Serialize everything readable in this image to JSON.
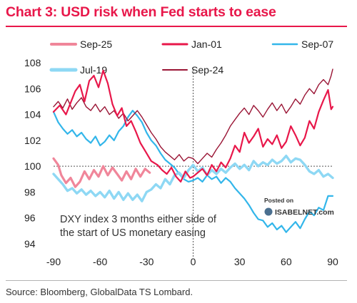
{
  "chart_data": {
    "type": "line",
    "title": "Chart 3: USD risk when Fed starts to ease",
    "source": "Source: Bloomberg, GlobalData TS Lombard.",
    "annotation": [
      "DXY index 3 months either side of",
      "the start of US monetary easing"
    ],
    "watermark": {
      "line1": "Posted on",
      "line2": "ISABELNET.com"
    },
    "xlim": [
      -90,
      90
    ],
    "ylim": [
      94,
      108
    ],
    "x_ticks": [
      -90,
      -60,
      -30,
      0,
      30,
      60,
      90
    ],
    "y_ticks": [
      94,
      96,
      98,
      100,
      102,
      104,
      106,
      108
    ],
    "reference_line": 100,
    "grid": false,
    "legend_position": "top",
    "series": [
      {
        "name": "Sep-25",
        "color": "#f0869a",
        "points": [
          [
            -90,
            100.6
          ],
          [
            -87,
            100.1
          ],
          [
            -85,
            99.3
          ],
          [
            -82,
            98.7
          ],
          [
            -79,
            99.1
          ],
          [
            -76,
            98.4
          ],
          [
            -73,
            98.8
          ],
          [
            -70,
            99.6
          ],
          [
            -67,
            99.0
          ],
          [
            -64,
            99.7
          ],
          [
            -61,
            99.2
          ],
          [
            -58,
            100.0
          ],
          [
            -55,
            99.3
          ],
          [
            -52,
            99.9
          ],
          [
            -49,
            99.4
          ],
          [
            -46,
            98.9
          ],
          [
            -43,
            99.6
          ],
          [
            -40,
            99.0
          ],
          [
            -37,
            99.8
          ],
          [
            -34,
            99.2
          ],
          [
            -31,
            99.8
          ],
          [
            -28,
            99.5
          ]
        ]
      },
      {
        "name": "Jan-01",
        "color": "#e8174a",
        "points": [
          [
            -90,
            104.2
          ],
          [
            -86,
            104.7
          ],
          [
            -82,
            104.0
          ],
          [
            -79,
            104.9
          ],
          [
            -76,
            105.8
          ],
          [
            -73,
            106.3
          ],
          [
            -70,
            105.0
          ],
          [
            -67,
            106.6
          ],
          [
            -64,
            107.0
          ],
          [
            -61,
            106.1
          ],
          [
            -58,
            107.4
          ],
          [
            -55,
            106.4
          ],
          [
            -52,
            104.8
          ],
          [
            -49,
            103.9
          ],
          [
            -46,
            104.5
          ],
          [
            -43,
            103.1
          ],
          [
            -40,
            103.5
          ],
          [
            -37,
            102.7
          ],
          [
            -34,
            101.8
          ],
          [
            -31,
            101.2
          ],
          [
            -27,
            100.4
          ],
          [
            -23,
            100.1
          ],
          [
            -20,
            99.7
          ],
          [
            -17,
            99.4
          ],
          [
            -14,
            99.9
          ],
          [
            -11,
            99.2
          ],
          [
            -8,
            98.8
          ],
          [
            -5,
            99.6
          ],
          [
            -2,
            99.1
          ],
          [
            0,
            99.2
          ],
          [
            3,
            99.5
          ],
          [
            6,
            99.8
          ],
          [
            9,
            99.3
          ],
          [
            12,
            100.1
          ],
          [
            15,
            99.6
          ],
          [
            18,
            100.3
          ],
          [
            21,
            99.9
          ],
          [
            24,
            100.6
          ],
          [
            27,
            101.6
          ],
          [
            30,
            101.1
          ],
          [
            33,
            102.6
          ],
          [
            36,
            101.8
          ],
          [
            39,
            102.3
          ],
          [
            42,
            102.9
          ],
          [
            45,
            101.5
          ],
          [
            48,
            102.1
          ],
          [
            51,
            101.7
          ],
          [
            54,
            102.4
          ],
          [
            57,
            101.4
          ],
          [
            60,
            101.9
          ],
          [
            63,
            103.1
          ],
          [
            66,
            102.4
          ],
          [
            69,
            101.6
          ],
          [
            72,
            102.2
          ],
          [
            75,
            103.5
          ],
          [
            78,
            102.9
          ],
          [
            81,
            104.2
          ],
          [
            84,
            105.1
          ],
          [
            87,
            105.9
          ],
          [
            89,
            104.4
          ],
          [
            90,
            104.6
          ]
        ]
      },
      {
        "name": "Sep-07",
        "color": "#33b6ea",
        "points": [
          [
            -90,
            104.2
          ],
          [
            -87,
            103.4
          ],
          [
            -84,
            102.9
          ],
          [
            -81,
            102.5
          ],
          [
            -78,
            102.8
          ],
          [
            -75,
            102.3
          ],
          [
            -72,
            102.6
          ],
          [
            -69,
            102.1
          ],
          [
            -66,
            101.8
          ],
          [
            -63,
            102.3
          ],
          [
            -60,
            101.6
          ],
          [
            -57,
            101.9
          ],
          [
            -54,
            102.4
          ],
          [
            -51,
            102.0
          ],
          [
            -48,
            102.7
          ],
          [
            -45,
            103.1
          ],
          [
            -42,
            103.8
          ],
          [
            -39,
            104.3
          ],
          [
            -36,
            103.9
          ],
          [
            -33,
            103.4
          ],
          [
            -30,
            102.6
          ],
          [
            -27,
            102.0
          ],
          [
            -24,
            101.6
          ],
          [
            -21,
            101.0
          ],
          [
            -18,
            100.5
          ],
          [
            -15,
            100.2
          ],
          [
            -12,
            99.9
          ],
          [
            -9,
            99.4
          ],
          [
            -6,
            99.0
          ],
          [
            -3,
            98.8
          ],
          [
            0,
            98.9
          ],
          [
            3,
            99.1
          ],
          [
            6,
            98.8
          ],
          [
            9,
            99.3
          ],
          [
            12,
            99.0
          ],
          [
            15,
            99.2
          ],
          [
            18,
            98.7
          ],
          [
            21,
            99.1
          ],
          [
            24,
            98.8
          ],
          [
            27,
            98.3
          ],
          [
            30,
            97.9
          ],
          [
            33,
            97.5
          ],
          [
            36,
            97.0
          ],
          [
            39,
            96.4
          ],
          [
            42,
            95.9
          ],
          [
            45,
            95.8
          ],
          [
            48,
            95.3
          ],
          [
            51,
            95.6
          ],
          [
            54,
            95.1
          ],
          [
            57,
            95.4
          ],
          [
            60,
            94.9
          ],
          [
            63,
            95.3
          ],
          [
            66,
            95.7
          ],
          [
            69,
            95.2
          ],
          [
            72,
            95.9
          ],
          [
            75,
            96.5
          ],
          [
            78,
            96.2
          ],
          [
            81,
            96.8
          ],
          [
            84,
            96.6
          ],
          [
            87,
            97.7
          ],
          [
            90,
            97.7
          ]
        ]
      },
      {
        "name": "Jul-19",
        "color": "#8ed8f4",
        "points": [
          [
            -90,
            99.4
          ],
          [
            -87,
            99.0
          ],
          [
            -84,
            98.6
          ],
          [
            -81,
            98.1
          ],
          [
            -78,
            98.3
          ],
          [
            -75,
            97.9
          ],
          [
            -72,
            98.2
          ],
          [
            -69,
            97.8
          ],
          [
            -66,
            98.1
          ],
          [
            -63,
            97.7
          ],
          [
            -60,
            98.0
          ],
          [
            -57,
            97.6
          ],
          [
            -54,
            98.1
          ],
          [
            -51,
            97.5
          ],
          [
            -48,
            98.0
          ],
          [
            -45,
            97.4
          ],
          [
            -42,
            97.9
          ],
          [
            -39,
            97.4
          ],
          [
            -36,
            97.8
          ],
          [
            -33,
            97.3
          ],
          [
            -30,
            98.0
          ],
          [
            -27,
            98.2
          ],
          [
            -24,
            98.6
          ],
          [
            -21,
            98.3
          ],
          [
            -18,
            99.0
          ],
          [
            -15,
            98.6
          ],
          [
            -12,
            99.3
          ],
          [
            -9,
            99.5
          ],
          [
            -6,
            99.1
          ],
          [
            -3,
            99.7
          ],
          [
            0,
            100.1
          ],
          [
            3,
            99.6
          ],
          [
            6,
            99.9
          ],
          [
            9,
            99.3
          ],
          [
            12,
            99.7
          ],
          [
            15,
            99.4
          ],
          [
            18,
            99.8
          ],
          [
            21,
            99.5
          ],
          [
            24,
            99.9
          ],
          [
            27,
            100.2
          ],
          [
            30,
            99.8
          ],
          [
            33,
            100.1
          ],
          [
            36,
            99.7
          ],
          [
            39,
            100.4
          ],
          [
            42,
            100.0
          ],
          [
            45,
            100.3
          ],
          [
            48,
            100.1
          ],
          [
            51,
            100.5
          ],
          [
            54,
            100.2
          ],
          [
            57,
            100.4
          ],
          [
            60,
            100.8
          ],
          [
            63,
            100.3
          ],
          [
            66,
            100.6
          ],
          [
            69,
            100.5
          ],
          [
            72,
            100.1
          ],
          [
            75,
            99.6
          ],
          [
            78,
            99.4
          ],
          [
            81,
            99.7
          ],
          [
            84,
            99.2
          ],
          [
            87,
            99.4
          ],
          [
            90,
            99.1
          ]
        ]
      },
      {
        "name": "Sep-24",
        "color": "#9a1535",
        "points": [
          [
            -90,
            104.6
          ],
          [
            -87,
            105.0
          ],
          [
            -84,
            104.5
          ],
          [
            -81,
            105.2
          ],
          [
            -78,
            104.4
          ],
          [
            -75,
            104.9
          ],
          [
            -72,
            105.3
          ],
          [
            -69,
            104.6
          ],
          [
            -66,
            104.3
          ],
          [
            -63,
            104.8
          ],
          [
            -60,
            104.2
          ],
          [
            -57,
            104.6
          ],
          [
            -54,
            104.0
          ],
          [
            -51,
            104.3
          ],
          [
            -48,
            103.7
          ],
          [
            -45,
            104.1
          ],
          [
            -42,
            103.5
          ],
          [
            -39,
            103.9
          ],
          [
            -36,
            104.3
          ],
          [
            -33,
            103.8
          ],
          [
            -30,
            103.2
          ],
          [
            -27,
            102.6
          ],
          [
            -24,
            102.1
          ],
          [
            -21,
            101.5
          ],
          [
            -18,
            101.1
          ],
          [
            -15,
            100.8
          ],
          [
            -12,
            100.5
          ],
          [
            -9,
            100.9
          ],
          [
            -6,
            100.4
          ],
          [
            -3,
            100.7
          ],
          [
            0,
            100.6
          ],
          [
            3,
            100.2
          ],
          [
            6,
            100.6
          ],
          [
            9,
            101.0
          ],
          [
            12,
            100.7
          ],
          [
            15,
            101.3
          ],
          [
            18,
            101.8
          ],
          [
            21,
            102.4
          ],
          [
            24,
            103.1
          ],
          [
            27,
            103.6
          ],
          [
            30,
            104.1
          ],
          [
            33,
            104.5
          ],
          [
            36,
            104.0
          ],
          [
            39,
            104.7
          ],
          [
            42,
            104.3
          ],
          [
            45,
            103.8
          ],
          [
            48,
            104.4
          ],
          [
            51,
            104.9
          ],
          [
            54,
            104.3
          ],
          [
            57,
            104.8
          ],
          [
            60,
            104.1
          ],
          [
            63,
            104.6
          ],
          [
            66,
            105.2
          ],
          [
            69,
            104.8
          ],
          [
            72,
            105.5
          ],
          [
            75,
            106.0
          ],
          [
            78,
            105.6
          ],
          [
            81,
            106.3
          ],
          [
            84,
            106.7
          ],
          [
            87,
            106.3
          ],
          [
            89,
            107.0
          ],
          [
            90,
            107.5
          ]
        ]
      }
    ]
  }
}
